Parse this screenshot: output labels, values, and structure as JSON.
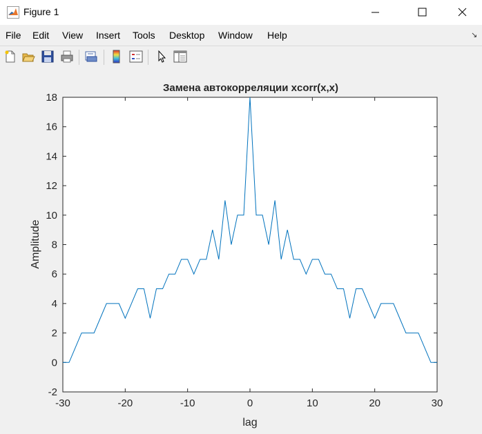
{
  "window": {
    "title": "Figure 1"
  },
  "menu": [
    "File",
    "Edit",
    "View",
    "Insert",
    "Tools",
    "Desktop",
    "Window",
    "Help"
  ],
  "toolbar": {
    "icons": [
      "new-figure-icon",
      "open-file-icon",
      "save-icon",
      "print-icon",
      "print-preview-icon",
      "colorbar-icon",
      "legend-icon",
      "pointer-icon",
      "property-editor-icon"
    ]
  },
  "chart_data": {
    "type": "line",
    "title": "Замена автокорреляции xcorr(x,x)",
    "xlabel": "lag",
    "ylabel": "Amplitude",
    "xlim": [
      -30,
      30
    ],
    "ylim": [
      -2,
      18
    ],
    "xticks": [
      "-30",
      "-20",
      "-10",
      "0",
      "10",
      "20",
      "30"
    ],
    "yticks": [
      "-2",
      "0",
      "2",
      "4",
      "6",
      "8",
      "10",
      "12",
      "14",
      "16",
      "18"
    ],
    "grid": false,
    "line_color": "#0072bd",
    "series": [
      {
        "x": [
          -30,
          -29,
          -28,
          -27,
          -26,
          -25,
          -24,
          -23,
          -22,
          -21,
          -20,
          -19,
          -18,
          -17,
          -16,
          -15,
          -14,
          -13,
          -12,
          -11,
          -10,
          -9,
          -8,
          -7,
          -6,
          -5,
          -4,
          -3,
          -2,
          -1,
          0,
          1,
          2,
          3,
          4,
          5,
          6,
          7,
          8,
          9,
          10,
          11,
          12,
          13,
          14,
          15,
          16,
          17,
          18,
          19,
          20,
          21,
          22,
          23,
          24,
          25,
          26,
          27,
          28,
          29,
          30
        ],
        "y": [
          0,
          0,
          1,
          2,
          2,
          2,
          3,
          4,
          4,
          4,
          3,
          4,
          5,
          5,
          3,
          5,
          5,
          6,
          6,
          7,
          7,
          6,
          7,
          7,
          9,
          7,
          11,
          8,
          10,
          10,
          18,
          10,
          10,
          8,
          11,
          7,
          9,
          7,
          7,
          6,
          7,
          7,
          6,
          6,
          5,
          5,
          3,
          5,
          5,
          4,
          3,
          4,
          4,
          4,
          3,
          2,
          2,
          2,
          1,
          0,
          0
        ]
      }
    ]
  }
}
